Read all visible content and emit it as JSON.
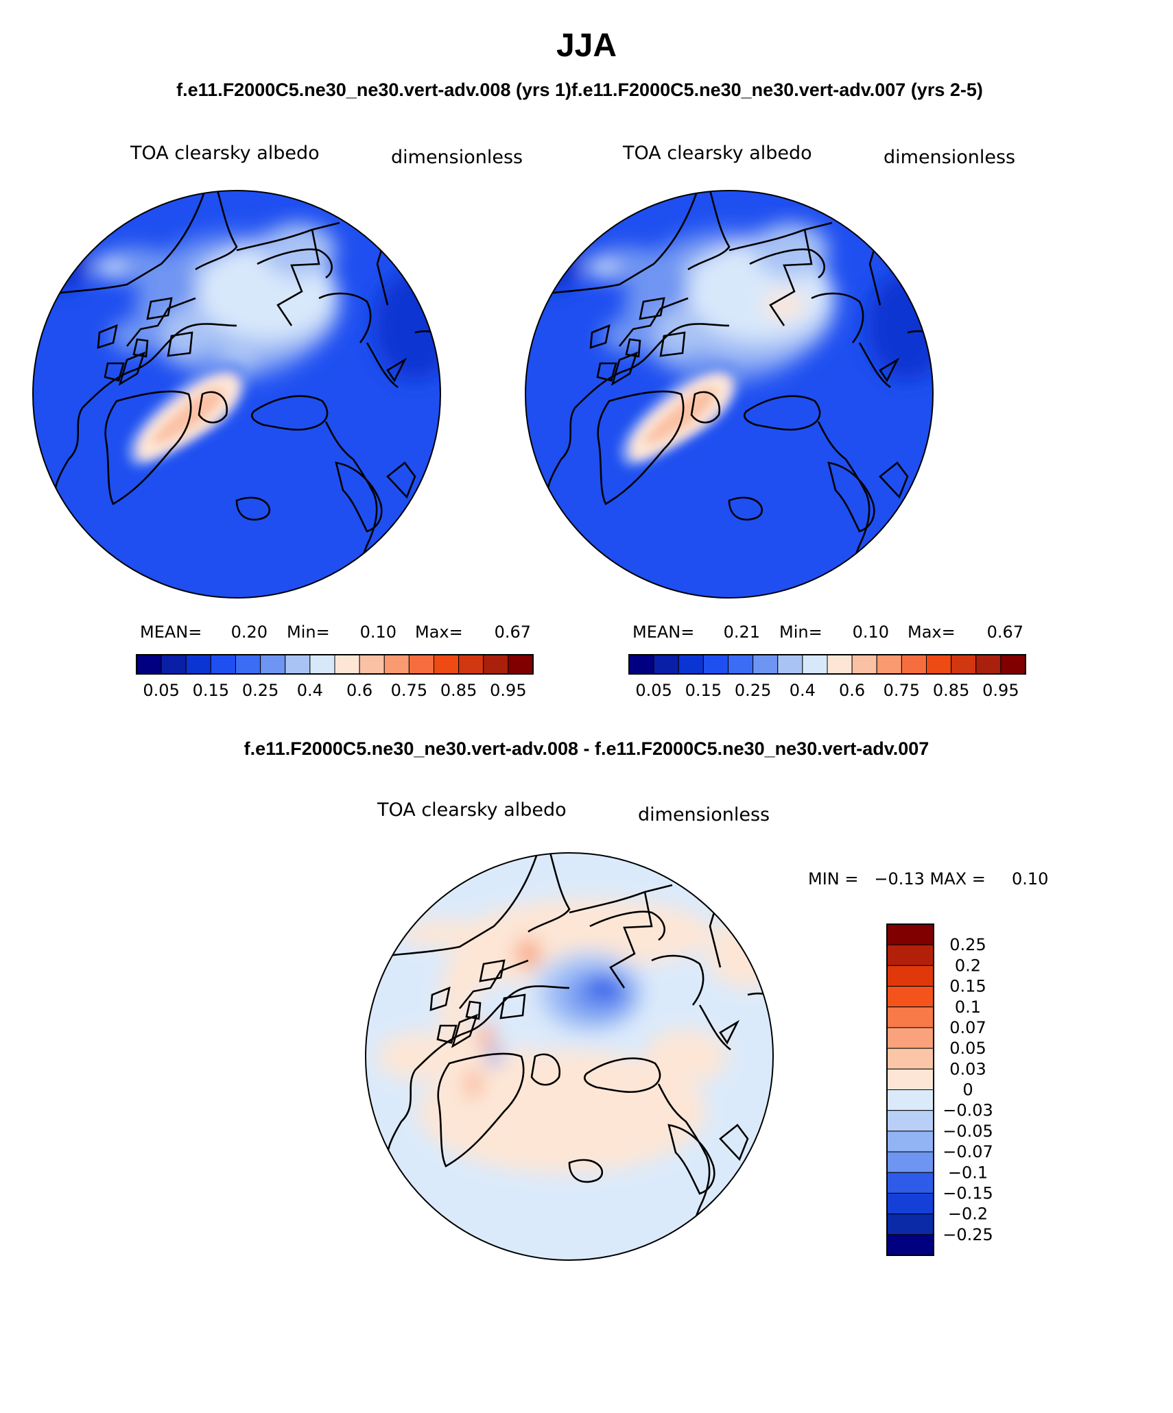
{
  "page_title": "JJA",
  "top_header_left": "f.e11.F2000C5.ne30_ne30.vert-adv.008 (yrs 1)",
  "top_header_right": "f.e11.F2000C5.ne30_ne30.vert-adv.007 (yrs 2-5)",
  "diff_header": "f.e11.F2000C5.ne30_ne30.vert-adv.008 - f.e11.F2000C5.ne30_ne30.vert-adv.007",
  "chart_data": [
    {
      "type": "heatmap",
      "projection": "north-polar-stereographic",
      "title": "TOA clearsky albedo",
      "units": "dimensionless",
      "stats": {
        "mean_label": "MEAN=",
        "mean": "0.20",
        "min_label": "Min=",
        "min": "0.10",
        "max_label": "Max=",
        "max": "0.67"
      },
      "levels": [
        "0.05",
        "0.15",
        "0.25",
        "0.4",
        "0.6",
        "0.75",
        "0.85",
        "0.95"
      ],
      "colors": [
        "#000080",
        "#0a1fa8",
        "#0b35d2",
        "#1f4ff0",
        "#3b6cf5",
        "#6f95f2",
        "#a9c3f5",
        "#d8e8fb",
        "#fde6d6",
        "#fbc1a4",
        "#f99a70",
        "#f66e3f",
        "#ed4a14",
        "#d13710",
        "#a9200c",
        "#800000"
      ]
    },
    {
      "type": "heatmap",
      "projection": "north-polar-stereographic",
      "title": "TOA clearsky albedo",
      "units": "dimensionless",
      "stats": {
        "mean_label": "MEAN=",
        "mean": "0.21",
        "min_label": "Min=",
        "min": "0.10",
        "max_label": "Max=",
        "max": "0.67"
      },
      "levels": [
        "0.05",
        "0.15",
        "0.25",
        "0.4",
        "0.6",
        "0.75",
        "0.85",
        "0.95"
      ],
      "colors": [
        "#000080",
        "#0a1fa8",
        "#0b35d2",
        "#1f4ff0",
        "#3b6cf5",
        "#6f95f2",
        "#a9c3f5",
        "#d8e8fb",
        "#fde6d6",
        "#fbc1a4",
        "#f99a70",
        "#f66e3f",
        "#ed4a14",
        "#d13710",
        "#a9200c",
        "#800000"
      ]
    },
    {
      "type": "heatmap",
      "projection": "north-polar-stereographic",
      "title": "TOA clearsky albedo",
      "units": "dimensionless",
      "minmax_text": "MIN =   −0.13 MAX =     0.10",
      "levels": [
        "0.25",
        "0.2",
        "0.15",
        "0.1",
        "0.07",
        "0.05",
        "0.03",
        "0",
        "−0.03",
        "−0.05",
        "−0.07",
        "−0.1",
        "−0.15",
        "−0.2",
        "−0.25"
      ],
      "colors": [
        "#800000",
        "#b3200a",
        "#e0380a",
        "#f4541c",
        "#f77a48",
        "#f9a27c",
        "#fbc6a8",
        "#fde6d6",
        "#dbeafb",
        "#b8d0f7",
        "#93b4f4",
        "#6e95f1",
        "#2e5ce9",
        "#1540d8",
        "#0a2aa8",
        "#000080"
      ]
    }
  ]
}
